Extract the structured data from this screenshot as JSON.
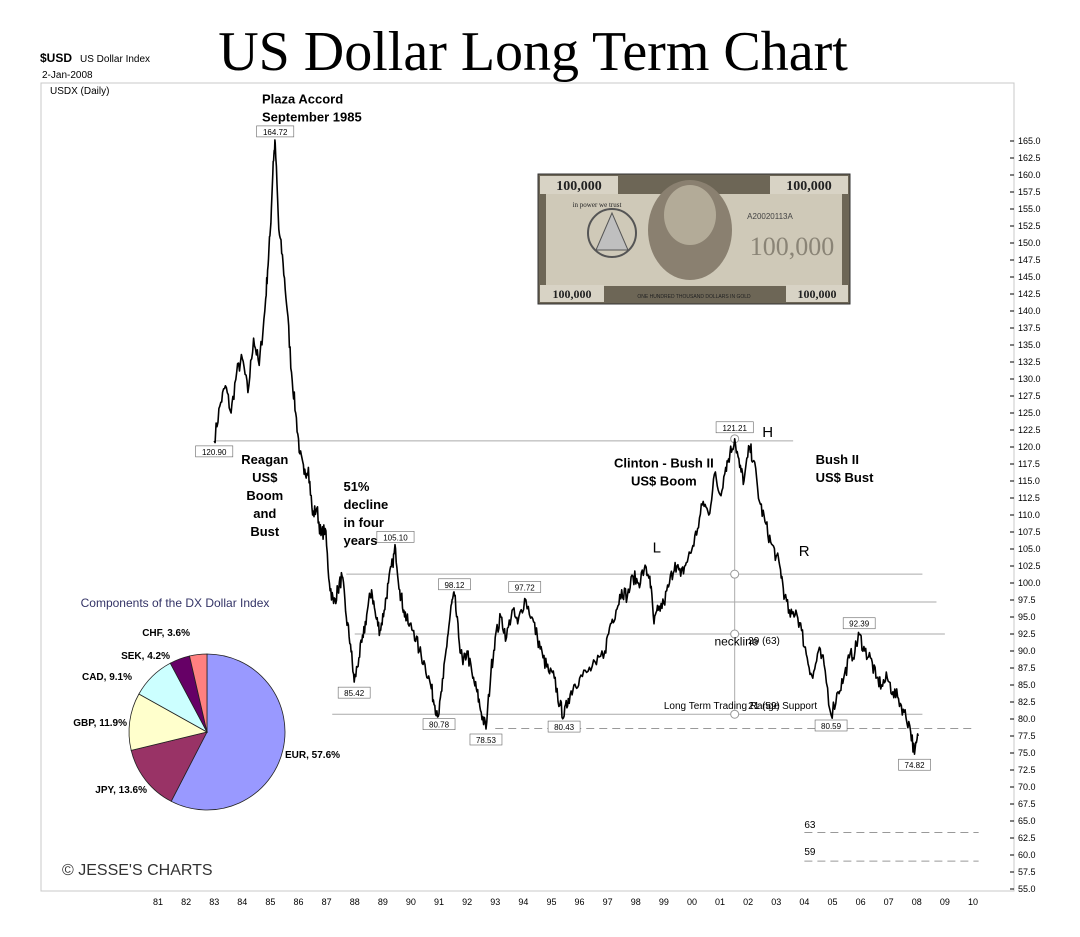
{
  "header": {
    "title": "US Dollar Long Term Chart",
    "symbol": "$USD",
    "symbol_name": "US Dollar Index",
    "date": "2-Jan-2008",
    "series_label": "USDX (Daily)"
  },
  "chart_data": {
    "type": "line",
    "title": "US Dollar Long Term Chart",
    "xlabel": "",
    "ylabel": "",
    "x_tick_labels": [
      "81",
      "82",
      "83",
      "84",
      "85",
      "86",
      "87",
      "88",
      "89",
      "90",
      "91",
      "92",
      "93",
      "94",
      "95",
      "96",
      "97",
      "98",
      "99",
      "00",
      "01",
      "02",
      "03",
      "04",
      "05",
      "06",
      "07",
      "08",
      "09",
      "10"
    ],
    "y_ticks": [
      55.0,
      57.5,
      60.0,
      62.5,
      65.0,
      67.5,
      70.0,
      72.5,
      75.0,
      77.5,
      80.0,
      82.5,
      85.0,
      87.5,
      90.0,
      92.5,
      95.0,
      97.5,
      100.0,
      102.5,
      105.0,
      107.5,
      110.0,
      112.5,
      115.0,
      117.5,
      120.0,
      122.5,
      125.0,
      127.5,
      130.0,
      132.5,
      135.0,
      137.5,
      140.0,
      142.5,
      145.0,
      147.5,
      150.0,
      152.5,
      155.0,
      157.5,
      160.0,
      162.5,
      165.0
    ],
    "y_tick_labels": [
      "55.0",
      "57.5",
      "60.0",
      "62.5",
      "65.0",
      "67.5",
      "70.0",
      "72.5",
      "75.0",
      "77.5",
      "80.0",
      "82.5",
      "85.0",
      "87.5",
      "90.0",
      "92.5",
      "95.0",
      "97.5",
      "100.0",
      "102.5",
      "105.0",
      "107.5",
      "110.0",
      "112.5",
      "115.0",
      "117.5",
      "120.0",
      "122.5",
      "125.0",
      "127.5",
      "130.0",
      "132.5",
      "135.0",
      "137.5",
      "140.0",
      "142.5",
      "145.0",
      "147.5",
      "150.0",
      "152.5",
      "155.0",
      "157.5",
      "160.0",
      "162.5",
      "165.0"
    ],
    "ylim": [
      55.0,
      166.0
    ],
    "xlim": [
      1980.5,
      2010.2
    ],
    "grid": false,
    "series": [
      {
        "points": [
          [
            1983.0,
            120.9
          ],
          [
            1983.2,
            126
          ],
          [
            1983.4,
            129
          ],
          [
            1983.6,
            125
          ],
          [
            1983.8,
            131
          ],
          [
            1984.0,
            133
          ],
          [
            1984.2,
            128
          ],
          [
            1984.4,
            136
          ],
          [
            1984.6,
            132
          ],
          [
            1984.8,
            140
          ],
          [
            1984.9,
            146
          ],
          [
            1985.0,
            152
          ],
          [
            1985.1,
            162
          ],
          [
            1985.17,
            164.72
          ],
          [
            1985.3,
            152
          ],
          [
            1985.45,
            147
          ],
          [
            1985.6,
            140
          ],
          [
            1985.75,
            131
          ],
          [
            1985.9,
            125
          ],
          [
            1986.05,
            119
          ],
          [
            1986.2,
            116
          ],
          [
            1986.35,
            117
          ],
          [
            1986.5,
            110
          ],
          [
            1986.65,
            111
          ],
          [
            1986.8,
            107
          ],
          [
            1986.95,
            108
          ],
          [
            1987.1,
            100
          ],
          [
            1987.25,
            97
          ],
          [
            1987.4,
            99
          ],
          [
            1987.55,
            101
          ],
          [
            1987.7,
            95
          ],
          [
            1987.85,
            91
          ],
          [
            1987.98,
            85.42
          ],
          [
            1988.15,
            89
          ],
          [
            1988.3,
            92
          ],
          [
            1988.45,
            96
          ],
          [
            1988.6,
            99
          ],
          [
            1988.75,
            95
          ],
          [
            1988.9,
            93
          ],
          [
            1989.05,
            96
          ],
          [
            1989.2,
            100
          ],
          [
            1989.35,
            103
          ],
          [
            1989.45,
            105.1
          ],
          [
            1989.6,
            99
          ],
          [
            1989.75,
            96
          ],
          [
            1989.9,
            94
          ],
          [
            1990.1,
            93
          ],
          [
            1990.3,
            90
          ],
          [
            1990.5,
            88
          ],
          [
            1990.7,
            85
          ],
          [
            1990.85,
            82
          ],
          [
            1991.0,
            80.78
          ],
          [
            1991.15,
            86
          ],
          [
            1991.3,
            92
          ],
          [
            1991.45,
            97
          ],
          [
            1991.55,
            98.12
          ],
          [
            1991.7,
            92
          ],
          [
            1991.85,
            88
          ],
          [
            1992.0,
            90
          ],
          [
            1992.2,
            86
          ],
          [
            1992.35,
            84
          ],
          [
            1992.5,
            81
          ],
          [
            1992.67,
            78.53
          ],
          [
            1992.85,
            87
          ],
          [
            1993.0,
            92
          ],
          [
            1993.2,
            95
          ],
          [
            1993.4,
            92
          ],
          [
            1993.6,
            96
          ],
          [
            1993.8,
            94
          ],
          [
            1994.05,
            97.72
          ],
          [
            1994.3,
            95
          ],
          [
            1994.5,
            92
          ],
          [
            1994.7,
            89
          ],
          [
            1994.9,
            87
          ],
          [
            1995.1,
            86
          ],
          [
            1995.3,
            82
          ],
          [
            1995.45,
            80.43
          ],
          [
            1995.6,
            83
          ],
          [
            1995.8,
            85
          ],
          [
            1996.0,
            86
          ],
          [
            1996.3,
            87
          ],
          [
            1996.6,
            88
          ],
          [
            1996.9,
            90
          ],
          [
            1997.1,
            94
          ],
          [
            1997.3,
            96
          ],
          [
            1997.5,
            99
          ],
          [
            1997.7,
            98
          ],
          [
            1997.9,
            101
          ],
          [
            1998.1,
            100
          ],
          [
            1998.3,
            102
          ],
          [
            1998.5,
            101
          ],
          [
            1998.65,
            94
          ],
          [
            1998.8,
            96
          ],
          [
            1999.0,
            97
          ],
          [
            1999.2,
            100
          ],
          [
            1999.4,
            103
          ],
          [
            1999.6,
            101
          ],
          [
            1999.8,
            103
          ],
          [
            2000.0,
            105
          ],
          [
            2000.2,
            108
          ],
          [
            2000.4,
            112
          ],
          [
            2000.6,
            110
          ],
          [
            2000.8,
            116
          ],
          [
            2001.0,
            113
          ],
          [
            2001.2,
            117
          ],
          [
            2001.35,
            119
          ],
          [
            2001.52,
            121.21
          ],
          [
            2001.7,
            117
          ],
          [
            2001.85,
            115
          ],
          [
            2002.05,
            120
          ],
          [
            2002.2,
            118
          ],
          [
            2002.4,
            112
          ],
          [
            2002.6,
            109
          ],
          [
            2002.8,
            106
          ],
          [
            2003.0,
            104
          ],
          [
            2003.15,
            102
          ],
          [
            2003.3,
            98
          ],
          [
            2003.5,
            95
          ],
          [
            2003.7,
            96
          ],
          [
            2003.9,
            93
          ],
          [
            2004.1,
            89
          ],
          [
            2004.3,
            86
          ],
          [
            2004.5,
            90
          ],
          [
            2004.7,
            88
          ],
          [
            2004.95,
            80.59
          ],
          [
            2005.2,
            84
          ],
          [
            2005.4,
            86
          ],
          [
            2005.6,
            89
          ],
          [
            2005.8,
            90
          ],
          [
            2005.95,
            92.39
          ],
          [
            2006.15,
            90
          ],
          [
            2006.35,
            89
          ],
          [
            2006.55,
            86
          ],
          [
            2006.75,
            85
          ],
          [
            2006.95,
            86
          ],
          [
            2007.15,
            84
          ],
          [
            2007.35,
            83
          ],
          [
            2007.55,
            81
          ],
          [
            2007.75,
            79
          ],
          [
            2007.92,
            74.82
          ],
          [
            2008.05,
            77.5
          ]
        ]
      }
    ],
    "point_labels": [
      {
        "x": 1983.0,
        "y": 120.9,
        "text": "120.90"
      },
      {
        "x": 1985.17,
        "y": 164.72,
        "text": "164.72"
      },
      {
        "x": 1987.98,
        "y": 85.42,
        "text": "85.42"
      },
      {
        "x": 1989.45,
        "y": 105.1,
        "text": "105.10"
      },
      {
        "x": 1991.0,
        "y": 80.78,
        "text": "80.78"
      },
      {
        "x": 1991.55,
        "y": 98.12,
        "text": "98.12"
      },
      {
        "x": 1992.67,
        "y": 78.53,
        "text": "78.53"
      },
      {
        "x": 1994.05,
        "y": 97.72,
        "text": "97.72"
      },
      {
        "x": 1995.45,
        "y": 80.43,
        "text": "80.43"
      },
      {
        "x": 2001.52,
        "y": 121.21,
        "text": "121.21"
      },
      {
        "x": 2004.95,
        "y": 80.59,
        "text": "80.59"
      },
      {
        "x": 2005.95,
        "y": 92.39,
        "text": "92.39"
      },
      {
        "x": 2007.92,
        "y": 74.82,
        "text": "74.82"
      }
    ],
    "annotations": [
      {
        "id": "plaza",
        "text_lines": [
          "Plaza Accord",
          "September 1985"
        ],
        "x": 1984.7,
        "y": 170.5
      },
      {
        "id": "reagan",
        "text_lines": [
          "Reagan",
          "US$",
          "Boom",
          "and",
          "Bust"
        ],
        "x": 1984.8,
        "y": 117.5
      },
      {
        "id": "decline",
        "text_lines": [
          "51%",
          "decline",
          "in four",
          "years"
        ],
        "x": 1987.6,
        "y": 113.5
      },
      {
        "id": "clinton",
        "text_lines": [
          "Clinton - Bush II",
          "US$ Boom"
        ],
        "x": 1999.0,
        "y": 117.0
      },
      {
        "id": "bushbust",
        "text_lines": [
          "Bush II",
          "US$ Bust"
        ],
        "x": 2004.4,
        "y": 117.5
      },
      {
        "id": "L",
        "text_lines": [
          "L"
        ],
        "x": 1998.6,
        "y": 104.5
      },
      {
        "id": "H",
        "text_lines": [
          "H"
        ],
        "x": 2002.5,
        "y": 121.5
      },
      {
        "id": "R",
        "text_lines": [
          "R"
        ],
        "x": 2003.8,
        "y": 104.0
      },
      {
        "id": "neckline",
        "text_lines": [
          "neckline"
        ],
        "x": 2000.8,
        "y": 90.8
      },
      {
        "id": "support",
        "text_lines": [
          "Long Term Trading Range Support"
        ],
        "x": 1999.0,
        "y": 81.5
      },
      {
        "id": "t29",
        "text_lines": [
          "29  (63)"
        ],
        "x": 2002.0,
        "y": 91.0
      },
      {
        "id": "t21",
        "text_lines": [
          "21  (59)"
        ],
        "x": 2002.0,
        "y": 81.5
      },
      {
        "id": "t63",
        "text_lines": [
          "63"
        ],
        "x": 2004.0,
        "y": 64.0
      },
      {
        "id": "t59",
        "text_lines": [
          "59"
        ],
        "x": 2004.0,
        "y": 60.0
      }
    ],
    "reference_lines": [
      {
        "y": 120.9,
        "x1": 1983.0,
        "x2": 2003.6,
        "style": "solid"
      },
      {
        "y": 101.3,
        "x1": 1987.7,
        "x2": 2008.2,
        "style": "solid"
      },
      {
        "y": 97.2,
        "x1": 1991.4,
        "x2": 2008.7,
        "style": "solid"
      },
      {
        "y": 92.5,
        "x1": 1988.0,
        "x2": 2009.0,
        "style": "solid"
      },
      {
        "y": 80.7,
        "x1": 1987.2,
        "x2": 2008.2,
        "style": "solid"
      },
      {
        "y": 78.6,
        "x1": 1993.0,
        "x2": 2010.0,
        "style": "dashed"
      },
      {
        "y": 63.3,
        "x1": 2004.0,
        "x2": 2010.2,
        "style": "dashed"
      },
      {
        "y": 59.1,
        "x1": 2004.0,
        "x2": 2010.2,
        "style": "dashed"
      }
    ],
    "measure_line": {
      "x": 2001.52,
      "y1": 121.2,
      "y2": 80.7,
      "circles": [
        121.2,
        101.3,
        92.5,
        80.7
      ]
    }
  },
  "pie_chart": {
    "type": "pie",
    "title": "Components of the DX Dollar Index",
    "slices": [
      {
        "label": "EUR, 57.6%",
        "value": 57.6,
        "color": "#9999ff"
      },
      {
        "label": "JPY, 13.6%",
        "value": 13.6,
        "color": "#993366"
      },
      {
        "label": "GBP, 11.9%",
        "value": 11.9,
        "color": "#ffffcc"
      },
      {
        "label": "CAD, 9.1%",
        "value": 9.1,
        "color": "#ccffff"
      },
      {
        "label": "SEK, 4.2%",
        "value": 4.2,
        "color": "#660066"
      },
      {
        "label": "CHF, 3.6%",
        "value": 3.6,
        "color": "#ff8080"
      }
    ]
  },
  "copyright": "© JESSE'S CHARTS",
  "banknote": {
    "corner_value": "100,000",
    "center_value": "100,000",
    "motto": "in power we trust",
    "serial": "A20020113A",
    "footer_text": "ONE HUNDRED THOUSAND DOLLARS IN GOLD"
  },
  "colors": {
    "line": "#000000",
    "ref_line": "#aaaaaa",
    "axis_text": "#000000",
    "frame": "#c8c8c8"
  }
}
